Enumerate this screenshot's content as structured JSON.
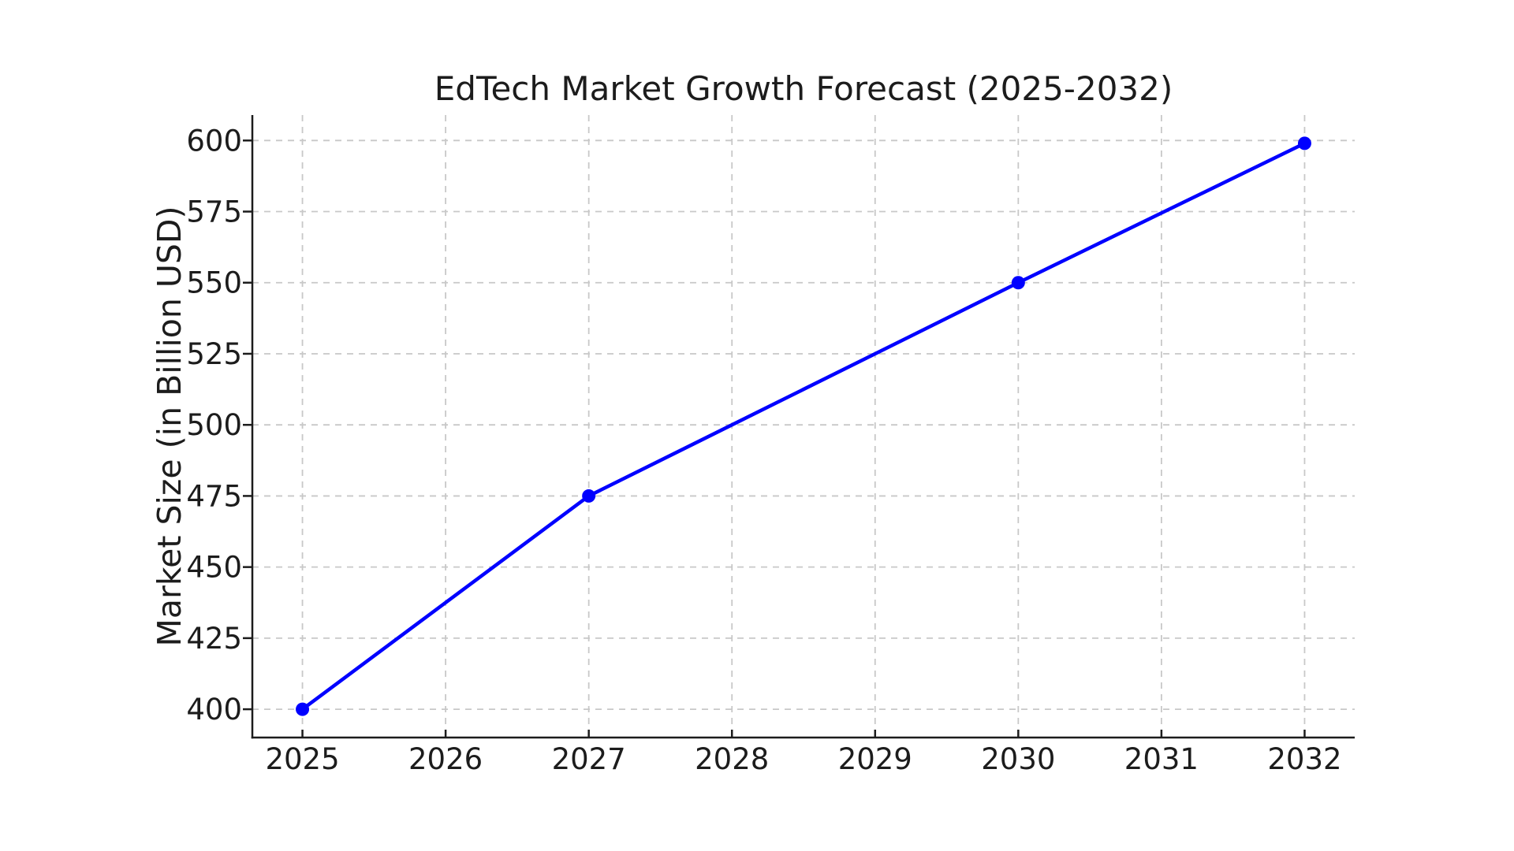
{
  "chart_data": {
    "type": "line",
    "title": "EdTech Market Growth Forecast (2025-2032)",
    "xlabel": "",
    "ylabel": "Market Size (in Billion USD)",
    "x": [
      2025,
      2027,
      2030,
      2032
    ],
    "y": [
      400,
      475,
      550,
      599
    ],
    "xticks": [
      "2025",
      "2026",
      "2027",
      "2028",
      "2029",
      "2030",
      "2031",
      "2032"
    ],
    "yticks": [
      "400",
      "425",
      "450",
      "475",
      "500",
      "525",
      "550",
      "575",
      "600"
    ],
    "xtick_values": [
      2025,
      2026,
      2027,
      2028,
      2029,
      2030,
      2031,
      2032
    ],
    "ytick_values": [
      400,
      425,
      450,
      475,
      500,
      525,
      550,
      575,
      600
    ],
    "xlim": [
      2024.65,
      2032.35
    ],
    "ylim": [
      390.05,
      608.95
    ],
    "grid": "dashed",
    "legend_position": "none",
    "marker": "o",
    "colors": {
      "line": "#0000ff",
      "marker": "#0000ff",
      "grid": "#c8c8c8",
      "axis": "#1c1c1c",
      "text": "#1c1c1c",
      "background": "#ffffff"
    }
  }
}
